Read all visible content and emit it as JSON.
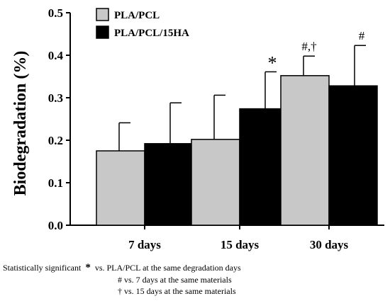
{
  "chart_data": {
    "type": "bar",
    "title": "",
    "xlabel": "",
    "ylabel": "Biodegradation (%)",
    "ylim": [
      0,
      0.5
    ],
    "yticks": [
      "0.0",
      "0.1",
      "0.2",
      "0.3",
      "0.4",
      "0.5"
    ],
    "categories": [
      "7 days",
      "15 days",
      "30 days"
    ],
    "legend_position": "top-left",
    "series": [
      {
        "name": "PLA/PCL",
        "color": "#c8c8c8",
        "values": [
          0.175,
          0.202,
          0.352
        ],
        "errors": [
          0.066,
          0.104,
          0.046
        ],
        "annotations": [
          "",
          "",
          "#,†"
        ]
      },
      {
        "name": "PLA/PCL/15HA",
        "color": "#000000",
        "values": [
          0.192,
          0.274,
          0.328
        ],
        "errors": [
          0.096,
          0.087,
          0.095
        ],
        "annotations": [
          "",
          "*",
          "#"
        ]
      }
    ]
  },
  "footnotes": {
    "line1_prefix": "Statistically significant",
    "line1_symbol": "*",
    "line1_text": "vs. PLA/PCL at the same degradation days",
    "line2": "# vs. 7 days at the same materials",
    "line3": "† vs. 15 days at the same materials"
  }
}
